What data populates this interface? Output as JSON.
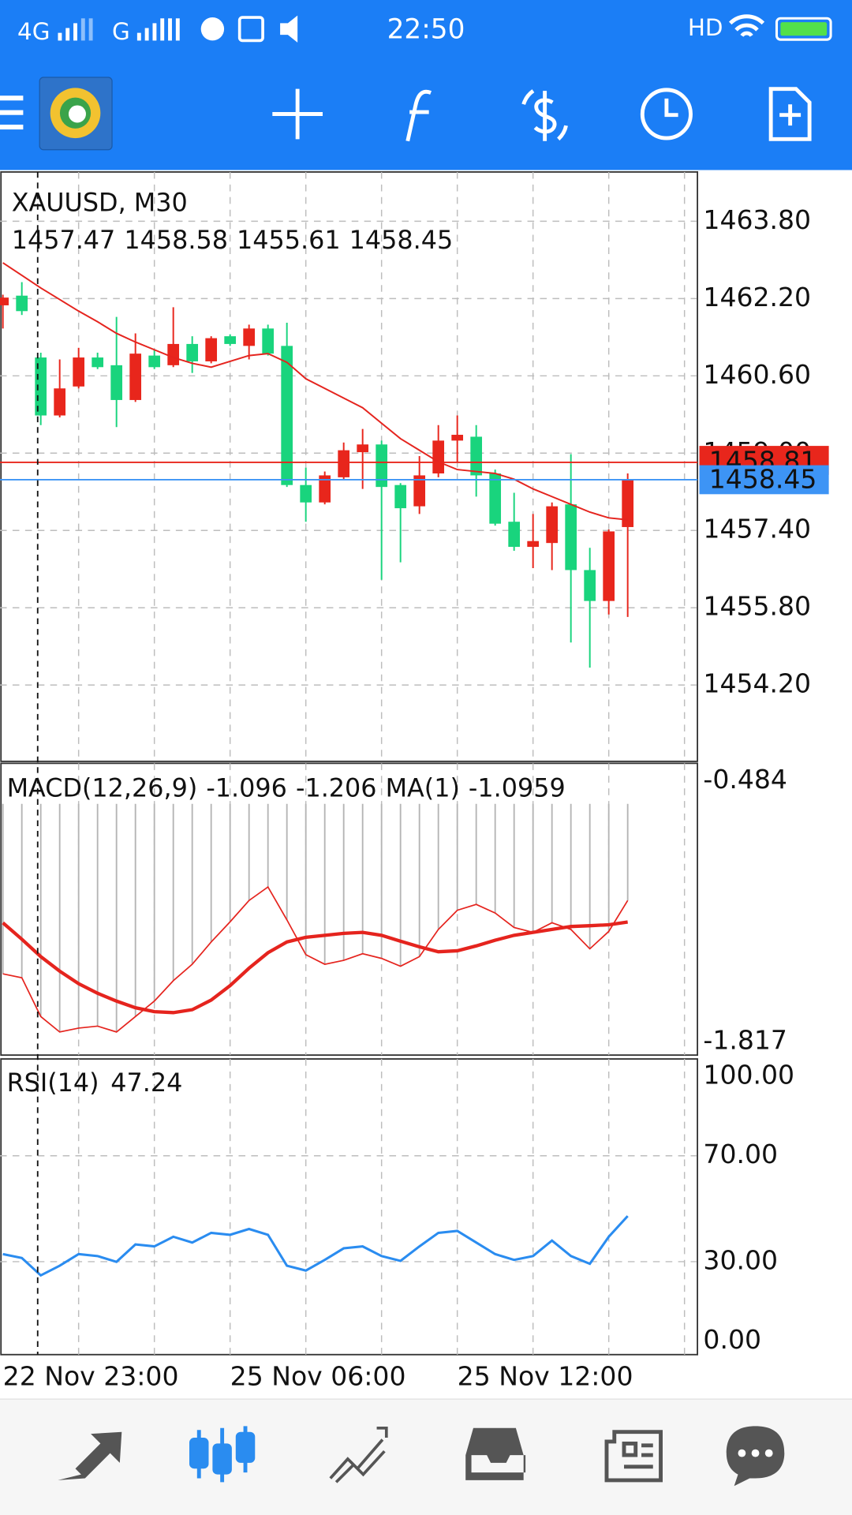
{
  "status_bar": {
    "network_1": "4G",
    "network_2": "G",
    "time": "22:50",
    "hd": "HD"
  },
  "chart": {
    "symbol": "XAUUSD, M30",
    "open": [
      1462.06,
      1462.26,
      1460.98,
      1459.78,
      1460.38,
      1460.98,
      1460.82,
      1460.1,
      1461.02,
      1460.82,
      1461.26,
      1460.9,
      1461.42,
      1461.22,
      1461.58,
      1461.22,
      1458.34,
      1457.98,
      1458.5,
      1459.02,
      1459.18,
      1458.34,
      1457.9,
      1458.58,
      1459.26,
      1459.34,
      1458.58,
      1457.58,
      1457.06,
      1457.14,
      1457.94,
      1456.58,
      1455.94,
      1457.47
    ],
    "high": [
      1462.28,
      1462.54,
      1461.08,
      1460.94,
      1461.18,
      1461.08,
      1461.82,
      1461.48,
      1461.14,
      1462.02,
      1461.42,
      1461.42,
      1461.46,
      1461.66,
      1461.66,
      1461.7,
      1458.7,
      1458.62,
      1459.22,
      1459.5,
      1459.26,
      1458.38,
      1458.94,
      1459.58,
      1459.78,
      1459.58,
      1458.66,
      1458.18,
      1457.74,
      1457.98,
      1458.98,
      1457.04,
      1457.42,
      1458.58
    ],
    "low": [
      1461.58,
      1461.86,
      1459.58,
      1459.74,
      1460.34,
      1460.74,
      1459.54,
      1460.06,
      1460.74,
      1460.78,
      1460.66,
      1460.86,
      1461.22,
      1460.94,
      1461.02,
      1458.3,
      1457.58,
      1457.94,
      1458.46,
      1458.26,
      1456.38,
      1456.74,
      1457.74,
      1458.5,
      1458.82,
      1458.1,
      1457.5,
      1456.98,
      1456.62,
      1456.58,
      1455.08,
      1454.56,
      1455.66,
      1455.61
    ],
    "close": [
      1462.22,
      1461.94,
      1459.78,
      1460.34,
      1460.98,
      1460.78,
      1460.1,
      1461.06,
      1460.78,
      1461.26,
      1460.9,
      1461.38,
      1461.26,
      1461.58,
      1461.06,
      1458.34,
      1457.98,
      1458.54,
      1459.06,
      1459.18,
      1458.3,
      1457.86,
      1458.54,
      1459.26,
      1459.38,
      1458.54,
      1457.54,
      1457.06,
      1457.18,
      1457.9,
      1456.58,
      1455.94,
      1457.38,
      1458.45
    ],
    "ma": [
      1462.94,
      1462.68,
      1462.42,
      1462.18,
      1461.94,
      1461.72,
      1461.48,
      1461.3,
      1461.14,
      1460.98,
      1460.86,
      1460.78,
      1460.9,
      1461.02,
      1461.06,
      1460.88,
      1460.54,
      1460.34,
      1460.14,
      1459.94,
      1459.62,
      1459.3,
      1459.06,
      1458.82,
      1458.66,
      1458.62,
      1458.58,
      1458.46,
      1458.26,
      1458.1,
      1457.94,
      1457.78,
      1457.66,
      1457.62
    ],
    "ask": 1458.81,
    "ylim": [
      1452.62,
      1464.82
    ],
    "yticks": [
      {
        "value": 1463.8,
        "label": "1463.80"
      },
      {
        "value": 1462.2,
        "label": "1462.20"
      },
      {
        "value": 1460.6,
        "label": "1460.60"
      },
      {
        "value": 1459,
        "label": "1459.00"
      },
      {
        "value": 1457.4,
        "label": "1457.40"
      },
      {
        "value": 1455.8,
        "label": "1455.80"
      },
      {
        "value": 1454.2,
        "label": "1454.20"
      }
    ],
    "up_color": "#e8261c",
    "down_color": "#19d47d",
    "ma_color": "#e5241e",
    "ask_color": "#e8261c",
    "bid_color": "#3d94f5",
    "time_labels": [
      "22 Nov 23:00",
      "25 Nov 06:00",
      "25 Nov 12:00"
    ]
  },
  "macd": {
    "title": "MACD(12,26,9)",
    "main": [
      -1.471,
      -1.491,
      -1.689,
      -1.768,
      -1.748,
      -1.738,
      -1.768,
      -1.689,
      -1.61,
      -1.506,
      -1.422,
      -1.308,
      -1.205,
      -1.096,
      -1.027,
      -1.195,
      -1.373,
      -1.422,
      -1.402,
      -1.368,
      -1.392,
      -1.432,
      -1.383,
      -1.244,
      -1.146,
      -1.116,
      -1.16,
      -1.234,
      -1.259,
      -1.21,
      -1.244,
      -1.343,
      -1.254,
      -1.096
    ],
    "signal": [
      -1.21,
      -1.294,
      -1.383,
      -1.457,
      -1.521,
      -1.57,
      -1.61,
      -1.644,
      -1.664,
      -1.669,
      -1.654,
      -1.605,
      -1.531,
      -1.442,
      -1.363,
      -1.308,
      -1.284,
      -1.274,
      -1.264,
      -1.259,
      -1.274,
      -1.304,
      -1.333,
      -1.358,
      -1.353,
      -1.328,
      -1.299,
      -1.274,
      -1.259,
      -1.244,
      -1.229,
      -1.225,
      -1.22,
      -1.206
    ],
    "ma_label": "MA(1)",
    "ma_value": -1.0959,
    "ylim": [
      -1.886,
      -0.395
    ],
    "yticks": [
      -0.484,
      -1.817
    ],
    "bar_color": "#b4b4b4",
    "line_color": "#e5241e"
  },
  "rsi": {
    "title": "RSI(14)",
    "values": [
      32.85,
      31.39,
      24.82,
      28.47,
      32.85,
      32.12,
      29.93,
      36.5,
      35.77,
      39.42,
      37.23,
      40.88,
      40.15,
      42.34,
      40.15,
      28.47,
      26.64,
      30.66,
      35.04,
      35.77,
      32.12,
      30.29,
      35.77,
      40.88,
      41.61,
      37.23,
      32.85,
      30.66,
      32.12,
      37.96,
      32.12,
      29.2,
      39.42,
      47.24
    ],
    "ylim": [
      -5.11,
      106.57
    ],
    "yticks": [
      {
        "value": 100,
        "label": "100.00"
      },
      {
        "value": 70,
        "label": "70.00"
      },
      {
        "value": 30,
        "label": "30.00"
      },
      {
        "value": 0,
        "label": "0.00"
      }
    ],
    "grid_ticks": [
      70,
      30
    ],
    "color": "#2a8cf0"
  }
}
